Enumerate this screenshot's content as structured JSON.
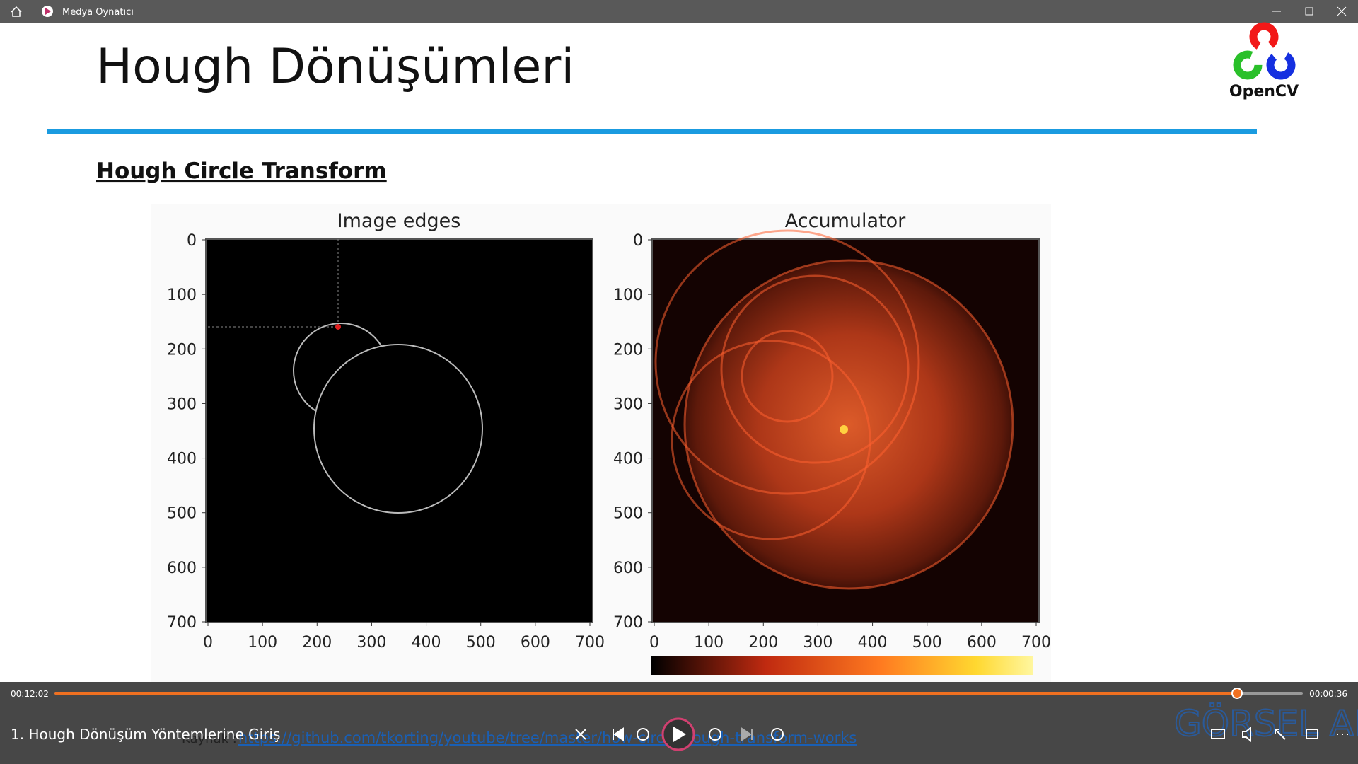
{
  "window": {
    "title": "Medya Oynatıcı"
  },
  "slide": {
    "title": "Hough Dönüşümleri",
    "logo": "OpenCV",
    "subtitle": "Hough Circle Transform",
    "source_label": "Kaynak :",
    "source_link": "https://github.com/tkorting/youtube/tree/master/how-circle-hough-transform-works",
    "watermark": "GÖRSEL ANALIZ",
    "plots": [
      {
        "title": "Image edges",
        "xticks": [
          0,
          100,
          200,
          300,
          400,
          500,
          600,
          700
        ],
        "yticks": [
          0,
          100,
          200,
          300,
          400,
          500,
          600,
          700
        ]
      },
      {
        "title": "Accumulator",
        "xticks": [
          0,
          100,
          200,
          300,
          400,
          500,
          600,
          700
        ],
        "yticks": [
          0,
          100,
          200,
          300,
          400,
          500,
          600,
          700
        ]
      }
    ]
  },
  "player": {
    "elapsed": "00:12:02",
    "remaining": "00:00:36",
    "track_title": "1. Hough Dönüşüm Yöntemlerine Giriş"
  }
}
